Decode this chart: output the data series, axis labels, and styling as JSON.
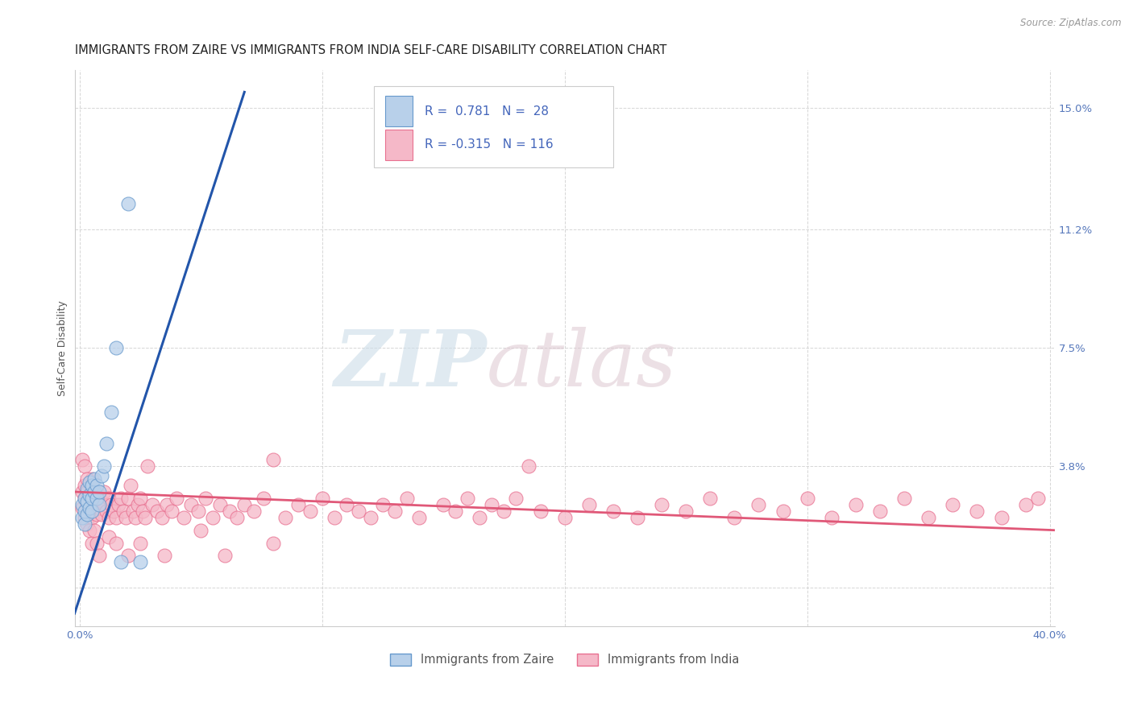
{
  "title": "IMMIGRANTS FROM ZAIRE VS IMMIGRANTS FROM INDIA SELF-CARE DISABILITY CORRELATION CHART",
  "source": "Source: ZipAtlas.com",
  "ylabel": "Self-Care Disability",
  "xlim": [
    -0.002,
    0.402
  ],
  "ylim": [
    -0.012,
    0.162
  ],
  "right_yticks": [
    0.0,
    0.038,
    0.075,
    0.112,
    0.15
  ],
  "right_yticklabels": [
    "",
    "3.8%",
    "7.5%",
    "11.2%",
    "15.0%"
  ],
  "xticks": [
    0.0,
    0.1,
    0.2,
    0.3,
    0.4
  ],
  "xticklabels": [
    "0.0%",
    "",
    "",
    "",
    "40.0%"
  ],
  "legend_zaire_R": "0.781",
  "legend_zaire_N": "28",
  "legend_india_R": "-0.315",
  "legend_india_N": "116",
  "color_zaire_fill": "#b8d0ea",
  "color_zaire_edge": "#6699cc",
  "color_zaire_line": "#2255aa",
  "color_india_fill": "#f5b8c8",
  "color_india_edge": "#e87090",
  "color_india_line": "#e05878",
  "zaire_scatter_x": [
    0.001,
    0.001,
    0.002,
    0.002,
    0.002,
    0.003,
    0.003,
    0.003,
    0.004,
    0.004,
    0.004,
    0.005,
    0.005,
    0.005,
    0.006,
    0.006,
    0.007,
    0.007,
    0.008,
    0.008,
    0.009,
    0.01,
    0.011,
    0.013,
    0.015,
    0.017,
    0.02,
    0.025
  ],
  "zaire_scatter_y": [
    0.022,
    0.026,
    0.02,
    0.024,
    0.028,
    0.023,
    0.027,
    0.031,
    0.025,
    0.029,
    0.033,
    0.024,
    0.028,
    0.032,
    0.03,
    0.034,
    0.028,
    0.032,
    0.026,
    0.03,
    0.035,
    0.038,
    0.045,
    0.055,
    0.075,
    0.008,
    0.12,
    0.008
  ],
  "india_scatter_x": [
    0.001,
    0.001,
    0.002,
    0.002,
    0.002,
    0.003,
    0.003,
    0.003,
    0.004,
    0.004,
    0.005,
    0.005,
    0.005,
    0.006,
    0.006,
    0.007,
    0.007,
    0.008,
    0.008,
    0.009,
    0.009,
    0.01,
    0.01,
    0.011,
    0.012,
    0.012,
    0.013,
    0.014,
    0.015,
    0.016,
    0.017,
    0.018,
    0.019,
    0.02,
    0.021,
    0.022,
    0.023,
    0.024,
    0.025,
    0.026,
    0.027,
    0.028,
    0.03,
    0.032,
    0.034,
    0.036,
    0.038,
    0.04,
    0.043,
    0.046,
    0.049,
    0.052,
    0.055,
    0.058,
    0.062,
    0.065,
    0.068,
    0.072,
    0.076,
    0.08,
    0.085,
    0.09,
    0.095,
    0.1,
    0.105,
    0.11,
    0.115,
    0.12,
    0.125,
    0.13,
    0.135,
    0.14,
    0.15,
    0.155,
    0.16,
    0.165,
    0.17,
    0.175,
    0.18,
    0.185,
    0.19,
    0.2,
    0.21,
    0.22,
    0.23,
    0.24,
    0.25,
    0.26,
    0.27,
    0.28,
    0.29,
    0.3,
    0.31,
    0.32,
    0.33,
    0.34,
    0.35,
    0.36,
    0.37,
    0.38,
    0.39,
    0.395,
    0.001,
    0.002,
    0.003,
    0.004,
    0.005,
    0.006,
    0.007,
    0.008,
    0.012,
    0.015,
    0.02,
    0.025,
    0.035,
    0.05,
    0.06,
    0.08
  ],
  "india_scatter_y": [
    0.025,
    0.03,
    0.022,
    0.028,
    0.032,
    0.02,
    0.026,
    0.03,
    0.024,
    0.028,
    0.022,
    0.03,
    0.034,
    0.025,
    0.029,
    0.023,
    0.027,
    0.025,
    0.029,
    0.023,
    0.027,
    0.026,
    0.03,
    0.024,
    0.028,
    0.022,
    0.026,
    0.024,
    0.022,
    0.026,
    0.028,
    0.024,
    0.022,
    0.028,
    0.032,
    0.024,
    0.022,
    0.026,
    0.028,
    0.024,
    0.022,
    0.038,
    0.026,
    0.024,
    0.022,
    0.026,
    0.024,
    0.028,
    0.022,
    0.026,
    0.024,
    0.028,
    0.022,
    0.026,
    0.024,
    0.022,
    0.026,
    0.024,
    0.028,
    0.04,
    0.022,
    0.026,
    0.024,
    0.028,
    0.022,
    0.026,
    0.024,
    0.022,
    0.026,
    0.024,
    0.028,
    0.022,
    0.026,
    0.024,
    0.028,
    0.022,
    0.026,
    0.024,
    0.028,
    0.038,
    0.024,
    0.022,
    0.026,
    0.024,
    0.022,
    0.026,
    0.024,
    0.028,
    0.022,
    0.026,
    0.024,
    0.028,
    0.022,
    0.026,
    0.024,
    0.028,
    0.022,
    0.026,
    0.024,
    0.022,
    0.026,
    0.028,
    0.04,
    0.038,
    0.034,
    0.018,
    0.014,
    0.018,
    0.014,
    0.01,
    0.016,
    0.014,
    0.01,
    0.014,
    0.01,
    0.018,
    0.01,
    0.014
  ],
  "zaire_line_x0": -0.002,
  "zaire_line_x1": 0.068,
  "zaire_line_y0": -0.008,
  "zaire_line_y1": 0.155,
  "india_line_x0": -0.002,
  "india_line_x1": 0.402,
  "india_line_y0": 0.03,
  "india_line_y1": 0.018,
  "background_color": "#ffffff",
  "grid_color": "#cccccc",
  "title_fontsize": 10.5,
  "axis_label_fontsize": 9,
  "tick_label_fontsize": 9.5,
  "legend_fontsize": 11
}
